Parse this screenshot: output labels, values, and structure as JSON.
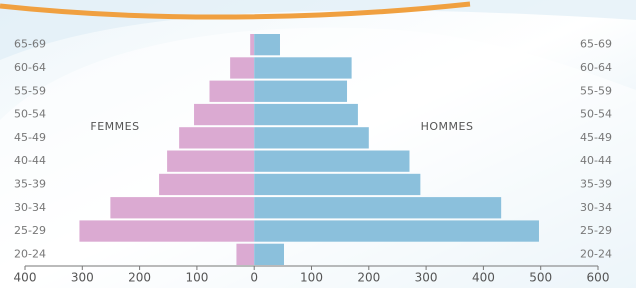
{
  "chart_data": {
    "type": "population-pyramid",
    "categories": [
      "65-69",
      "60-64",
      "55-59",
      "50-54",
      "45-49",
      "40-44",
      "35-39",
      "30-34",
      "25-29",
      "20-24"
    ],
    "series": [
      {
        "name": "FEMMES",
        "color": "#dbaad2",
        "side": "left",
        "values": [
          7,
          42,
          78,
          105,
          131,
          152,
          166,
          251,
          305,
          31
        ]
      },
      {
        "name": "HOMMES",
        "color": "#8bc0dc",
        "side": "right",
        "values": [
          45,
          170,
          162,
          181,
          200,
          271,
          290,
          431,
          497,
          52
        ]
      }
    ],
    "xlim": [
      -400,
      600
    ],
    "xticks": [
      {
        "value": -400,
        "label": "400"
      },
      {
        "value": -300,
        "label": "300"
      },
      {
        "value": -200,
        "label": "200"
      },
      {
        "value": -100,
        "label": "100"
      },
      0,
      100,
      200,
      300,
      400,
      500,
      600
    ]
  }
}
